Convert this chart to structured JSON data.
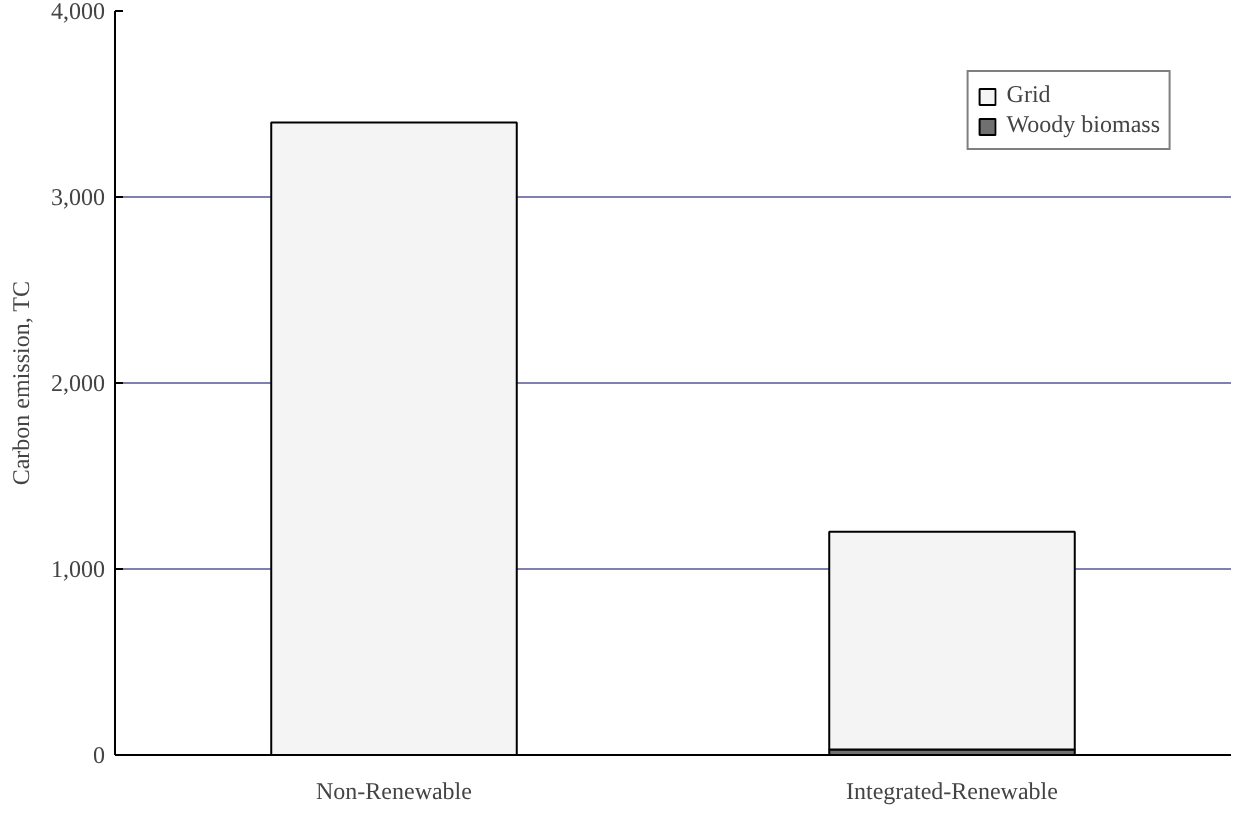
{
  "chart_data": {
    "type": "bar",
    "stacked": true,
    "ylabel": "Carbon emission, TC",
    "categories": [
      "Non-Renewable",
      "Integrated-Renewable"
    ],
    "series": [
      {
        "name": "Woody biomass",
        "color": "#707070",
        "values": [
          null,
          30
        ]
      },
      {
        "name": "Grid",
        "color": "#f4f4f4",
        "values": [
          3400,
          1170
        ]
      }
    ],
    "ylim": [
      0,
      4000
    ],
    "yticks": [
      0,
      {
        "value": 1000,
        "label": "1,000"
      },
      {
        "value": 2000,
        "label": "2,000"
      },
      {
        "value": 3000,
        "label": "3,000"
      },
      {
        "value": 4000,
        "label": "4,000"
      }
    ],
    "grid": "y",
    "legend": "top right"
  }
}
